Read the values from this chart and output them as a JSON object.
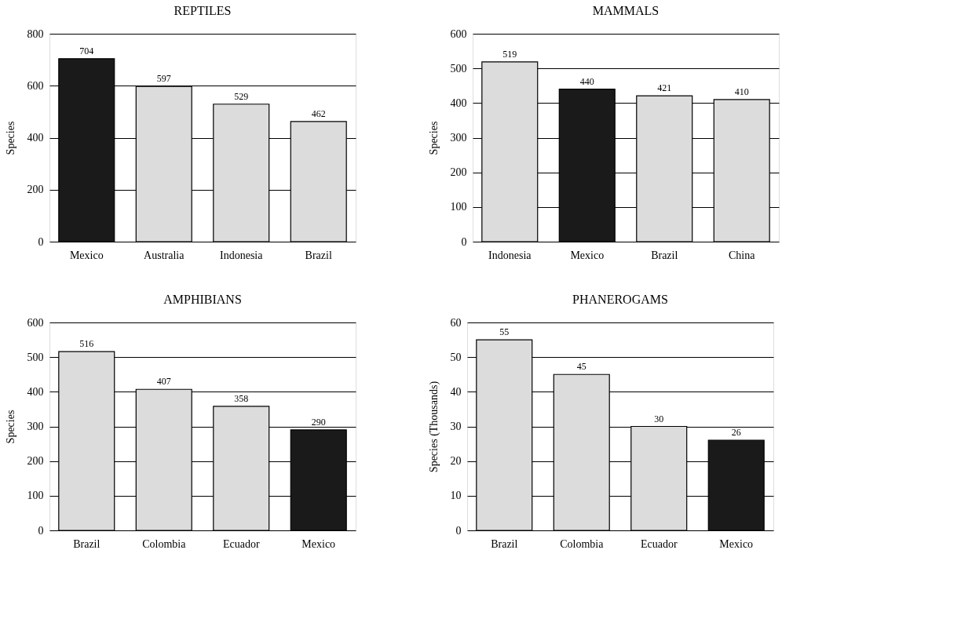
{
  "chart_data": [
    {
      "type": "bar",
      "title": "REPTILES",
      "ylabel": "Species",
      "categories": [
        "Mexico",
        "Australia",
        "Indonesia",
        "Brazil"
      ],
      "values": [
        704,
        597,
        529,
        462
      ],
      "colors": [
        "#1a1a1a",
        "#dcdcdc",
        "#dcdcdc",
        "#dcdcdc"
      ],
      "ylim": [
        0,
        800
      ],
      "yticks": [
        0,
        200,
        400,
        600,
        800
      ],
      "grid": "y",
      "data_labels": true
    },
    {
      "type": "bar",
      "title": "MAMMALS",
      "ylabel": "Species",
      "categories": [
        "Indonesia",
        "Mexico",
        "Brazil",
        "China"
      ],
      "values": [
        519,
        440,
        421,
        410
      ],
      "colors": [
        "#dcdcdc",
        "#1a1a1a",
        "#dcdcdc",
        "#dcdcdc"
      ],
      "ylim": [
        0,
        600
      ],
      "yticks": [
        0,
        100,
        200,
        300,
        400,
        500,
        600
      ],
      "grid": "y",
      "data_labels": true
    },
    {
      "type": "bar",
      "title": "AMPHIBIANS",
      "ylabel": "Species",
      "categories": [
        "Brazil",
        "Colombia",
        "Ecuador",
        "Mexico"
      ],
      "values": [
        516,
        407,
        358,
        290
      ],
      "colors": [
        "#dcdcdc",
        "#dcdcdc",
        "#dcdcdc",
        "#1a1a1a"
      ],
      "ylim": [
        0,
        600
      ],
      "yticks": [
        0,
        100,
        200,
        300,
        400,
        500,
        600
      ],
      "grid": "y",
      "data_labels": true
    },
    {
      "type": "bar",
      "title": "PHANEROGAMS",
      "ylabel": "Species (Thousands)",
      "categories": [
        "Brazil",
        "Colombia",
        "Ecuador",
        "Mexico"
      ],
      "values": [
        55,
        45,
        30,
        26
      ],
      "colors": [
        "#dcdcdc",
        "#dcdcdc",
        "#dcdcdc",
        "#1a1a1a"
      ],
      "ylim": [
        0,
        60
      ],
      "yticks": [
        0,
        10,
        20,
        30,
        40,
        50,
        60
      ],
      "grid": "y",
      "data_labels": true
    }
  ]
}
